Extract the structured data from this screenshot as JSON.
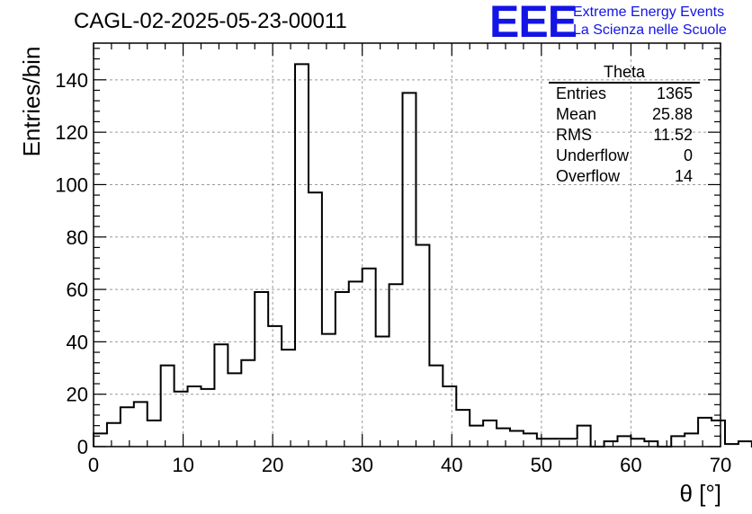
{
  "title": "CAGL-02-2025-05-23-00011",
  "logo": {
    "mark": "EEE",
    "line1": "Extreme Energy Events",
    "line2": "La Scienza nelle Scuole",
    "color": "#1414e6"
  },
  "stats": {
    "title": "Theta",
    "rows": [
      {
        "label": "Entries",
        "value": "1365"
      },
      {
        "label": "Mean",
        "value": "25.88"
      },
      {
        "label": "RMS",
        "value": "11.52"
      },
      {
        "label": "Underflow",
        "value": "0"
      },
      {
        "label": "Overflow",
        "value": "14"
      }
    ]
  },
  "chart_data": {
    "type": "bar",
    "histogram_style": "step",
    "title": "CAGL-02-2025-05-23-00011",
    "xlabel": "θ [°]",
    "ylabel": "Entries/bin",
    "xlim": [
      0,
      70
    ],
    "ylim": [
      0,
      154
    ],
    "bin_width": 1.5,
    "x_ticks": [
      0,
      10,
      20,
      30,
      40,
      50,
      60,
      70
    ],
    "y_ticks": [
      0,
      20,
      40,
      60,
      80,
      100,
      120,
      140
    ],
    "grid": true,
    "line_color": "#000000",
    "values": [
      5,
      9,
      15,
      17,
      10,
      31,
      21,
      23,
      22,
      39,
      28,
      33,
      59,
      46,
      37,
      146,
      97,
      43,
      59,
      63,
      68,
      42,
      62,
      135,
      77,
      31,
      23,
      14,
      8,
      10,
      7,
      6,
      5,
      3,
      3,
      3,
      8,
      0,
      2,
      4,
      3,
      2,
      0,
      4,
      5,
      11,
      10,
      1,
      2,
      0
    ]
  }
}
